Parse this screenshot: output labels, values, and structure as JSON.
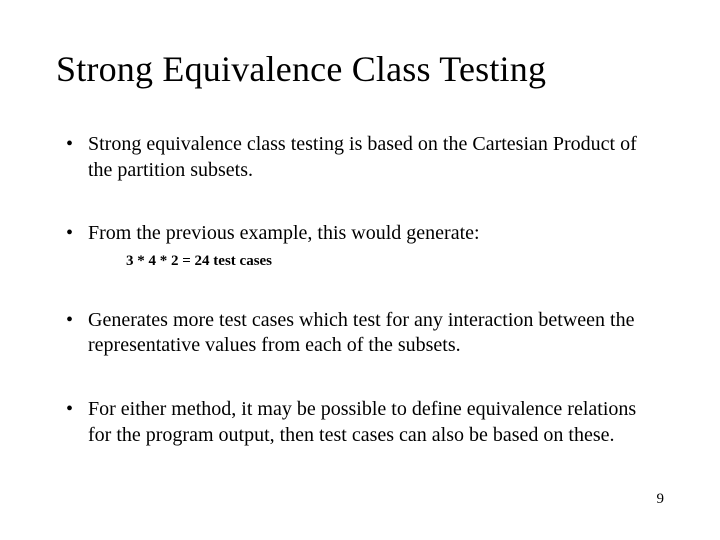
{
  "title": "Strong Equivalence Class Testing",
  "bullets": {
    "b1": "Strong equivalence class testing is based on the Cartesian Product of the partition subsets.",
    "b2": "From the previous example, this would generate:",
    "b2sub": "3 * 4 * 2 = 24 test cases",
    "b3": "Generates more test cases which test for any interaction between the representative values from each of the subsets.",
    "b4": "For either method, it may be possible to define equivalence relations for the program output, then test cases can also be based on these."
  },
  "page_number": "9",
  "colors": {
    "background": "#ffffff",
    "text": "#000000"
  },
  "typography": {
    "title_fontsize": 36,
    "body_fontsize": 20,
    "sub_fontsize": 15,
    "pagenum_fontsize": 15,
    "font_family": "Times New Roman"
  }
}
